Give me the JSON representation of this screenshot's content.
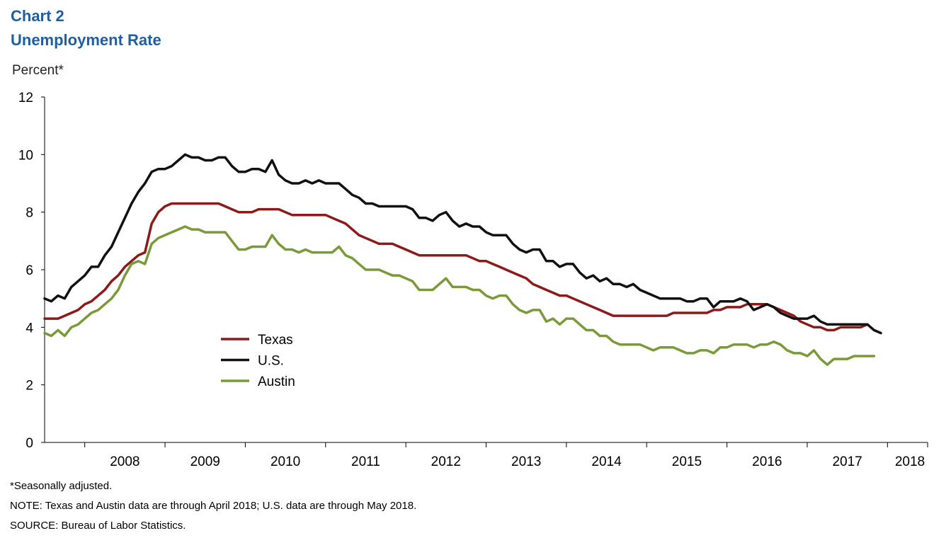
{
  "figure": {
    "label": "Chart 2",
    "title": "Unemployment Rate",
    "unit_label": "Percent*"
  },
  "footnotes": {
    "seasonal": "*Seasonally adjusted.",
    "note": "NOTE: Texas and Austin data are through April 2018; U.S. data are through May 2018.",
    "source": "SOURCE: Bureau of Labor Statistics."
  },
  "chart_data": {
    "type": "line",
    "title": "Unemployment Rate",
    "ylabel": "Percent*",
    "xlabel": "",
    "ylim": [
      0,
      12
    ],
    "yticks": [
      0,
      2,
      4,
      6,
      8,
      10,
      12
    ],
    "x_start": "2007-07",
    "x_end": "2018-07",
    "x_tick_labels": [
      "2008",
      "2009",
      "2010",
      "2011",
      "2012",
      "2013",
      "2014",
      "2015",
      "2016",
      "2017",
      "2018"
    ],
    "grid": false,
    "legend_position": "center-left",
    "series": [
      {
        "name": "Texas",
        "color": "#8b1a1a",
        "start": "2007-07",
        "values": [
          4.3,
          4.3,
          4.3,
          4.4,
          4.5,
          4.6,
          4.8,
          4.9,
          5.1,
          5.3,
          5.6,
          5.8,
          6.1,
          6.3,
          6.5,
          6.6,
          7.6,
          8.0,
          8.2,
          8.3,
          8.3,
          8.3,
          8.3,
          8.3,
          8.3,
          8.3,
          8.3,
          8.2,
          8.1,
          8.0,
          8.0,
          8.0,
          8.1,
          8.1,
          8.1,
          8.1,
          8.0,
          7.9,
          7.9,
          7.9,
          7.9,
          7.9,
          7.9,
          7.8,
          7.7,
          7.6,
          7.4,
          7.2,
          7.1,
          7.0,
          6.9,
          6.9,
          6.9,
          6.8,
          6.7,
          6.6,
          6.5,
          6.5,
          6.5,
          6.5,
          6.5,
          6.5,
          6.5,
          6.5,
          6.4,
          6.3,
          6.3,
          6.2,
          6.1,
          6.0,
          5.9,
          5.8,
          5.7,
          5.5,
          5.4,
          5.3,
          5.2,
          5.1,
          5.1,
          5.0,
          4.9,
          4.8,
          4.7,
          4.6,
          4.5,
          4.4,
          4.4,
          4.4,
          4.4,
          4.4,
          4.4,
          4.4,
          4.4,
          4.4,
          4.5,
          4.5,
          4.5,
          4.5,
          4.5,
          4.5,
          4.6,
          4.6,
          4.7,
          4.7,
          4.7,
          4.8,
          4.8,
          4.8,
          4.8,
          4.7,
          4.6,
          4.5,
          4.4,
          4.2,
          4.1,
          4.0,
          4.0,
          3.9,
          3.9,
          4.0,
          4.0,
          4.0,
          4.0,
          4.1
        ]
      },
      {
        "name": "U.S.",
        "color": "#111111",
        "start": "2007-07",
        "values": [
          5.0,
          4.9,
          5.1,
          5.0,
          5.4,
          5.6,
          5.8,
          6.1,
          6.1,
          6.5,
          6.8,
          7.3,
          7.8,
          8.3,
          8.7,
          9.0,
          9.4,
          9.5,
          9.5,
          9.6,
          9.8,
          10.0,
          9.9,
          9.9,
          9.8,
          9.8,
          9.9,
          9.9,
          9.6,
          9.4,
          9.4,
          9.5,
          9.5,
          9.4,
          9.8,
          9.3,
          9.1,
          9.0,
          9.0,
          9.1,
          9.0,
          9.1,
          9.0,
          9.0,
          9.0,
          8.8,
          8.6,
          8.5,
          8.3,
          8.3,
          8.2,
          8.2,
          8.2,
          8.2,
          8.2,
          8.1,
          7.8,
          7.8,
          7.7,
          7.9,
          8.0,
          7.7,
          7.5,
          7.6,
          7.5,
          7.5,
          7.3,
          7.2,
          7.2,
          7.2,
          6.9,
          6.7,
          6.6,
          6.7,
          6.7,
          6.3,
          6.3,
          6.1,
          6.2,
          6.2,
          5.9,
          5.7,
          5.8,
          5.6,
          5.7,
          5.5,
          5.5,
          5.4,
          5.5,
          5.3,
          5.2,
          5.1,
          5.0,
          5.0,
          5.0,
          5.0,
          4.9,
          4.9,
          5.0,
          5.0,
          4.7,
          4.9,
          4.9,
          4.9,
          5.0,
          4.9,
          4.6,
          4.7,
          4.8,
          4.7,
          4.5,
          4.4,
          4.3,
          4.3,
          4.3,
          4.4,
          4.2,
          4.1,
          4.1,
          4.1,
          4.1,
          4.1,
          4.1,
          4.1,
          3.9,
          3.8
        ]
      },
      {
        "name": "Austin",
        "color": "#7a9a3a",
        "start": "2007-07",
        "values": [
          3.8,
          3.7,
          3.9,
          3.7,
          4.0,
          4.1,
          4.3,
          4.5,
          4.6,
          4.8,
          5.0,
          5.3,
          5.8,
          6.2,
          6.3,
          6.2,
          6.9,
          7.1,
          7.2,
          7.3,
          7.4,
          7.5,
          7.4,
          7.4,
          7.3,
          7.3,
          7.3,
          7.3,
          7.0,
          6.7,
          6.7,
          6.8,
          6.8,
          6.8,
          7.2,
          6.9,
          6.7,
          6.7,
          6.6,
          6.7,
          6.6,
          6.6,
          6.6,
          6.6,
          6.8,
          6.5,
          6.4,
          6.2,
          6.0,
          6.0,
          6.0,
          5.9,
          5.8,
          5.8,
          5.7,
          5.6,
          5.3,
          5.3,
          5.3,
          5.5,
          5.7,
          5.4,
          5.4,
          5.4,
          5.3,
          5.3,
          5.1,
          5.0,
          5.1,
          5.1,
          4.8,
          4.6,
          4.5,
          4.6,
          4.6,
          4.2,
          4.3,
          4.1,
          4.3,
          4.3,
          4.1,
          3.9,
          3.9,
          3.7,
          3.7,
          3.5,
          3.4,
          3.4,
          3.4,
          3.4,
          3.3,
          3.2,
          3.3,
          3.3,
          3.3,
          3.2,
          3.1,
          3.1,
          3.2,
          3.2,
          3.1,
          3.3,
          3.3,
          3.4,
          3.4,
          3.4,
          3.3,
          3.4,
          3.4,
          3.5,
          3.4,
          3.2,
          3.1,
          3.1,
          3.0,
          3.2,
          2.9,
          2.7,
          2.9,
          2.9,
          2.9,
          3.0,
          3.0,
          3.0,
          3.0
        ]
      }
    ]
  }
}
